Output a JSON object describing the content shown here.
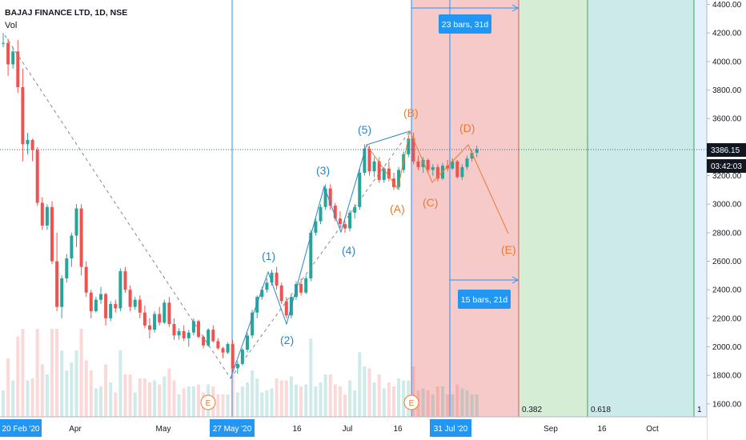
{
  "header": {
    "title": "BAJAJ FINANCE LTD, 1D, NSE",
    "volume_label": "Vol"
  },
  "price_axis": {
    "ticks": [
      "4400.00",
      "4200.00",
      "4000.00",
      "3800.00",
      "3600.00",
      "3400.00",
      "3200.00",
      "3000.00",
      "2800.00",
      "2600.00",
      "2400.00",
      "2200.00",
      "2000.00",
      "1800.00",
      "1600.00"
    ],
    "last_price": "3386.15",
    "countdown": "03:42:03",
    "last_price_color": "#131722"
  },
  "time_axis": {
    "labels": [
      "Apr",
      "May",
      "16",
      "Jul",
      "16",
      "Sep",
      "16",
      "Oct"
    ],
    "highlight_start": "20 Feb '20",
    "highlight_mid": "27 May '20",
    "highlight_end": "31 Jul '20"
  },
  "waves": {
    "impulse": [
      "(1)",
      "(2)",
      "(3)",
      "(4)",
      "(5)"
    ],
    "corrective": [
      "(A)",
      "(B)",
      "(C)",
      "(D)",
      "(E)"
    ],
    "impulse_color": "#2a86c8",
    "corrective_color": "#f0792d"
  },
  "events": [
    "E",
    "E"
  ],
  "fib_time": {
    "levels": [
      "0.382",
      "0.618",
      "1"
    ],
    "colors": [
      "#f7caca",
      "#d5ecd5",
      "#cdeaea",
      "#e4f2fb"
    ]
  },
  "measures": {
    "top": "23 bars, 31d",
    "bottom": "15 bars, 21d",
    "color": "#2196f3"
  },
  "chart_data": {
    "type": "candlestick",
    "symbol": "BAJAJ FINANCE LTD",
    "interval": "1D",
    "exchange": "NSE",
    "ylim": [
      1560,
      4420
    ],
    "last": 3386.15,
    "up_color": "#26a69a",
    "down_color": "#ef5350",
    "candles": [
      [
        4130,
        4200,
        4100,
        4130
      ],
      [
        4130,
        4160,
        3900,
        3980
      ],
      [
        3980,
        4100,
        3950,
        4070
      ],
      [
        4070,
        4150,
        3780,
        3820
      ],
      [
        3820,
        3950,
        3300,
        3420
      ],
      [
        3420,
        3500,
        3350,
        3450
      ],
      [
        3450,
        3460,
        3300,
        3380
      ],
      [
        3380,
        3400,
        2990,
        3010
      ],
      [
        3010,
        3050,
        2820,
        2850
      ],
      [
        2850,
        3000,
        2820,
        2980
      ],
      [
        2980,
        3020,
        2580,
        2600
      ],
      [
        2600,
        2800,
        2250,
        2280
      ],
      [
        2280,
        2500,
        2200,
        2480
      ],
      [
        2480,
        2650,
        2450,
        2620
      ],
      [
        2620,
        2800,
        2560,
        2780
      ],
      [
        2780,
        3000,
        2700,
        2970
      ],
      [
        2970,
        3000,
        2500,
        2560
      ],
      [
        2560,
        2600,
        2350,
        2380
      ],
      [
        2380,
        2400,
        2200,
        2250
      ],
      [
        2250,
        2350,
        2240,
        2330
      ],
      [
        2330,
        2420,
        2300,
        2370
      ],
      [
        2370,
        2380,
        2150,
        2200
      ],
      [
        2200,
        2320,
        2180,
        2300
      ],
      [
        2300,
        2330,
        2240,
        2270
      ],
      [
        2270,
        2550,
        2250,
        2530
      ],
      [
        2530,
        2560,
        2380,
        2400
      ],
      [
        2400,
        2430,
        2250,
        2280
      ],
      [
        2280,
        2350,
        2260,
        2330
      ],
      [
        2330,
        2360,
        2200,
        2240
      ],
      [
        2240,
        2290,
        2130,
        2150
      ],
      [
        2150,
        2200,
        2060,
        2120
      ],
      [
        2120,
        2250,
        2100,
        2230
      ],
      [
        2230,
        2280,
        2150,
        2170
      ],
      [
        2170,
        2330,
        2160,
        2310
      ],
      [
        2310,
        2350,
        2140,
        2160
      ],
      [
        2160,
        2200,
        2050,
        2080
      ],
      [
        2080,
        2130,
        2050,
        2110
      ],
      [
        2110,
        2150,
        2040,
        2060
      ],
      [
        2060,
        2120,
        2000,
        2100
      ],
      [
        2100,
        2200,
        2080,
        2180
      ],
      [
        2180,
        2190,
        2060,
        2070
      ],
      [
        2070,
        2080,
        1990,
        2010
      ],
      [
        2010,
        2130,
        2000,
        2120
      ],
      [
        2120,
        2150,
        2030,
        2040
      ],
      [
        2040,
        2060,
        1980,
        1990
      ],
      [
        1990,
        2000,
        1920,
        1960
      ],
      [
        1960,
        2030,
        1950,
        2020
      ],
      [
        2020,
        2050,
        1830,
        1850
      ],
      [
        1850,
        1900,
        1810,
        1880
      ],
      [
        1880,
        1990,
        1870,
        1980
      ],
      [
        1980,
        2100,
        1960,
        2080
      ],
      [
        2080,
        2260,
        2060,
        2240
      ],
      [
        2240,
        2360,
        2200,
        2350
      ],
      [
        2350,
        2420,
        2330,
        2400
      ],
      [
        2400,
        2480,
        2380,
        2450
      ],
      [
        2450,
        2540,
        2430,
        2520
      ],
      [
        2520,
        2560,
        2400,
        2430
      ],
      [
        2430,
        2450,
        2300,
        2320
      ],
      [
        2320,
        2350,
        2200,
        2220
      ],
      [
        2220,
        2370,
        2200,
        2350
      ],
      [
        2350,
        2460,
        2330,
        2440
      ],
      [
        2440,
        2480,
        2360,
        2380
      ],
      [
        2380,
        2500,
        2370,
        2480
      ],
      [
        2480,
        2820,
        2460,
        2800
      ],
      [
        2800,
        2900,
        2780,
        2880
      ],
      [
        2880,
        3000,
        2860,
        2980
      ],
      [
        2980,
        3140,
        2960,
        3110
      ],
      [
        3110,
        3140,
        2960,
        2990
      ],
      [
        2990,
        3010,
        2880,
        2900
      ],
      [
        2900,
        2950,
        2830,
        2860
      ],
      [
        2860,
        2880,
        2800,
        2830
      ],
      [
        2830,
        2960,
        2810,
        2940
      ],
      [
        2940,
        3000,
        2900,
        2980
      ],
      [
        2980,
        3250,
        2960,
        3220
      ],
      [
        3220,
        3420,
        3200,
        3390
      ],
      [
        3390,
        3410,
        3200,
        3230
      ],
      [
        3230,
        3330,
        3190,
        3300
      ],
      [
        3300,
        3330,
        3150,
        3170
      ],
      [
        3170,
        3260,
        3150,
        3250
      ],
      [
        3250,
        3300,
        3160,
        3180
      ],
      [
        3180,
        3220,
        3100,
        3120
      ],
      [
        3120,
        3260,
        3100,
        3240
      ],
      [
        3240,
        3370,
        3220,
        3350
      ],
      [
        3350,
        3480,
        3330,
        3460
      ],
      [
        3460,
        3500,
        3280,
        3300
      ],
      [
        3300,
        3340,
        3240,
        3260
      ],
      [
        3260,
        3330,
        3220,
        3310
      ],
      [
        3310,
        3320,
        3220,
        3240
      ],
      [
        3240,
        3280,
        3200,
        3260
      ],
      [
        3260,
        3280,
        3160,
        3180
      ],
      [
        3180,
        3290,
        3170,
        3270
      ],
      [
        3270,
        3310,
        3230,
        3250
      ],
      [
        3250,
        3320,
        3240,
        3300
      ],
      [
        3300,
        3310,
        3180,
        3190
      ],
      [
        3190,
        3280,
        3170,
        3260
      ],
      [
        3260,
        3340,
        3240,
        3320
      ],
      [
        3320,
        3380,
        3300,
        3360
      ],
      [
        3360,
        3410,
        3330,
        3386
      ]
    ]
  }
}
